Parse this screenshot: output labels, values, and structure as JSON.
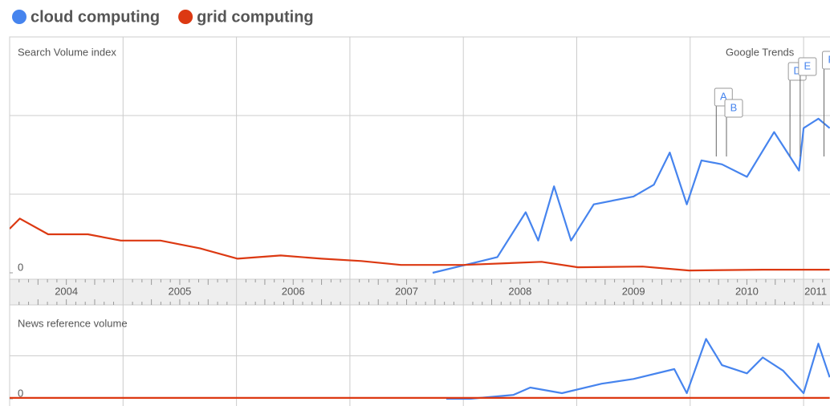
{
  "chart_data": [
    {
      "type": "line",
      "legend": [
        "cloud computing",
        "grid computing"
      ],
      "label": "Search Volume index",
      "brand": "Google Trends",
      "categories": [
        "2004",
        "2005",
        "2006",
        "2007",
        "2008",
        "2009",
        "2010",
        "2011"
      ],
      "xlim": [
        2004,
        2011.23
      ],
      "ylim": [
        0,
        3
      ],
      "yticks": [
        0
      ],
      "grid_lines": [
        1,
        2
      ],
      "annotations": [
        {
          "label": "A",
          "x": 2010.23
        },
        {
          "label": "B",
          "x": 2010.32
        },
        {
          "label": "D",
          "x": 2010.88
        },
        {
          "label": "E",
          "x": 2010.97
        },
        {
          "label": "F",
          "x": 2011.18
        }
      ],
      "series": [
        {
          "name": "cloud computing",
          "color": "#4684ee",
          "x": [
            2007.73,
            2008.16,
            2008.3,
            2008.55,
            2008.66,
            2008.8,
            2008.95,
            2009.15,
            2009.5,
            2009.68,
            2009.82,
            2009.97,
            2010.1,
            2010.28,
            2010.5,
            2010.74,
            2010.96,
            2011.0,
            2011.13,
            2011.23
          ],
          "values": [
            0,
            0.15,
            0.2,
            0.77,
            0.41,
            1.1,
            0.41,
            0.87,
            0.97,
            1.12,
            1.53,
            0.87,
            1.43,
            1.38,
            1.22,
            1.79,
            1.3,
            1.84,
            1.96,
            1.84
          ]
        },
        {
          "name": "grid computing",
          "color": "#dc3912",
          "x": [
            2004.0,
            2004.09,
            2004.34,
            2004.69,
            2004.98,
            2005.33,
            2005.68,
            2006.01,
            2006.39,
            2006.75,
            2007.1,
            2007.45,
            2008.0,
            2008.69,
            2009.01,
            2009.58,
            2009.99,
            2010.64,
            2011.23
          ],
          "values": [
            0.56,
            0.69,
            0.49,
            0.49,
            0.41,
            0.41,
            0.31,
            0.18,
            0.22,
            0.18,
            0.15,
            0.1,
            0.1,
            0.14,
            0.07,
            0.08,
            0.03,
            0.04,
            0.04
          ]
        }
      ]
    },
    {
      "type": "line",
      "label": "News reference volume",
      "xlim": [
        2004,
        2011.23
      ],
      "ylim": [
        0,
        1.9
      ],
      "yticks": [
        0
      ],
      "grid_lines": [
        1
      ],
      "series": [
        {
          "name": "cloud computing",
          "color": "#4684ee",
          "x": [
            2007.85,
            2008.06,
            2008.44,
            2008.59,
            2008.87,
            2009.22,
            2009.5,
            2009.86,
            2009.97,
            2010.14,
            2010.28,
            2010.5,
            2010.64,
            2010.82,
            2011.0,
            2011.13,
            2011.23
          ],
          "values": [
            0,
            0,
            0.09,
            0.26,
            0.13,
            0.35,
            0.46,
            0.69,
            0.13,
            1.39,
            0.78,
            0.59,
            0.96,
            0.65,
            0.13,
            1.28,
            0.5
          ]
        },
        {
          "name": "grid computing",
          "color": "#dc3912",
          "x": [
            2004.0,
            2011.23
          ],
          "values": [
            0.02,
            0.02
          ]
        }
      ]
    }
  ]
}
